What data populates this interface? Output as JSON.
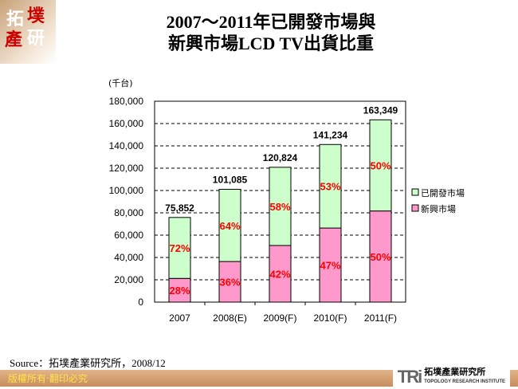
{
  "logo": {
    "text": "拓墣產研"
  },
  "title_lines": [
    "2007～2011年已開發市場與",
    "新興市場LCD TV出貨比重"
  ],
  "chart_data": {
    "type": "bar",
    "stacked": true,
    "unit_label": "(千台)",
    "categories": [
      "2007",
      "2008(E)",
      "2009(F)",
      "2010(F)",
      "2011(F)"
    ],
    "totals": [
      75852,
      101085,
      120824,
      141234,
      163349
    ],
    "total_labels": [
      "75,852",
      "101,085",
      "120,824",
      "141,234",
      "163,349"
    ],
    "series": [
      {
        "name": "新興市場",
        "color": "#ff99cc",
        "share_pct": [
          28,
          36,
          42,
          47,
          50
        ],
        "share_labels": [
          "28%",
          "36%",
          "42%",
          "47%",
          "50%"
        ]
      },
      {
        "name": "已開發市場",
        "color": "#ccffcc",
        "share_pct": [
          72,
          64,
          58,
          53,
          50
        ],
        "share_labels": [
          "72%",
          "64%",
          "58%",
          "53%",
          "50%"
        ]
      }
    ],
    "ylim": [
      0,
      180000
    ],
    "yticks": [
      "0",
      "20,000",
      "40,000",
      "60,000",
      "80,000",
      "100,000",
      "120,000",
      "140,000",
      "160,000",
      "180,000"
    ],
    "grid": "dashed horizontal",
    "legend": "right",
    "label_color": "#ff0000"
  },
  "source": "Source：拓墣產業研究所，2008/12",
  "footer": {
    "copyright": "版權所有‧翻印必究",
    "brand_mark": "TRi",
    "brand_cn": "拓墣產業研究所",
    "brand_en": "TOPOLOGY RESEARCH INSTITUTE"
  }
}
